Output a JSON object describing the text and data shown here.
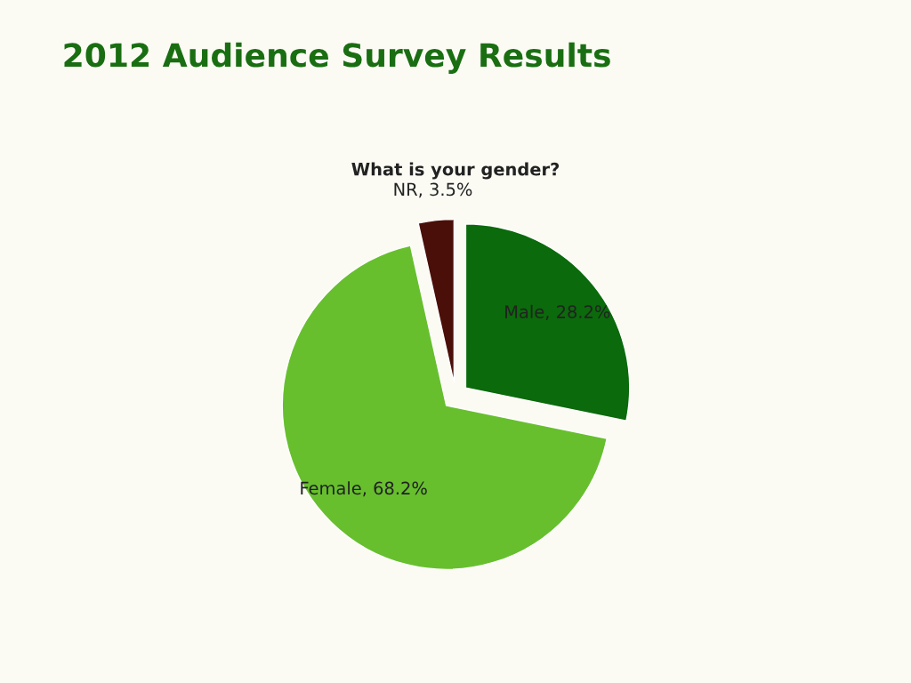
{
  "chart_data": {
    "type": "pie",
    "title": "2012 Audience Survey Results",
    "subtitle": "What is your gender?",
    "categories": [
      "Male",
      "Female",
      "NR"
    ],
    "values": [
      28.2,
      68.2,
      3.5
    ],
    "colors": [
      "#0b6a0b",
      "#67bf2e",
      "#4a0f08"
    ],
    "value_labels": [
      "28.2%",
      "68.2%",
      "3.5%"
    ],
    "legend": false
  }
}
